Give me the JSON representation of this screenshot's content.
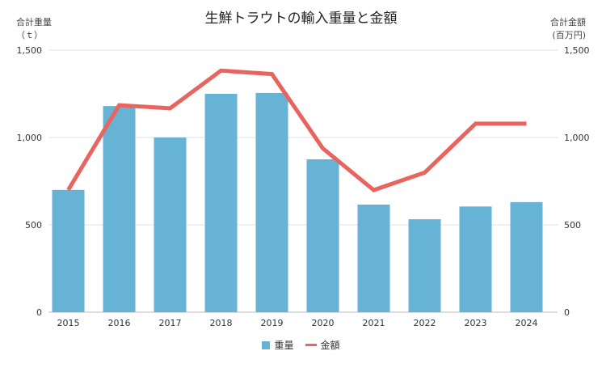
{
  "chart_data": {
    "type": "bar+line",
    "title": "生鮮トラウトの輸入重量と金額",
    "y_left_label": [
      "合計重量",
      "（ｔ）"
    ],
    "y_right_label": [
      "合計金額",
      "(百万円)"
    ],
    "categories": [
      "2015",
      "2016",
      "2017",
      "2018",
      "2019",
      "2020",
      "2021",
      "2022",
      "2023",
      "2024"
    ],
    "ylim_left": [
      0,
      1500
    ],
    "ylim_right": [
      0,
      1500
    ],
    "yticks_left": [
      "0",
      "500",
      "1,000",
      "1,500"
    ],
    "yticks_right": [
      "0",
      "500",
      "1,000",
      "1,500"
    ],
    "grid": true,
    "legend_position": "bottom",
    "series": [
      {
        "name": "重量",
        "type": "bar",
        "axis": "left",
        "color": "#67b3d6",
        "values": [
          700,
          1180,
          1000,
          1250,
          1255,
          875,
          616,
          532,
          605,
          630
        ]
      },
      {
        "name": "金額",
        "type": "line",
        "axis": "right",
        "color": "#e8655f",
        "values": [
          700,
          1185,
          1167,
          1383,
          1363,
          938,
          699,
          799,
          1079,
          1079
        ]
      }
    ]
  }
}
